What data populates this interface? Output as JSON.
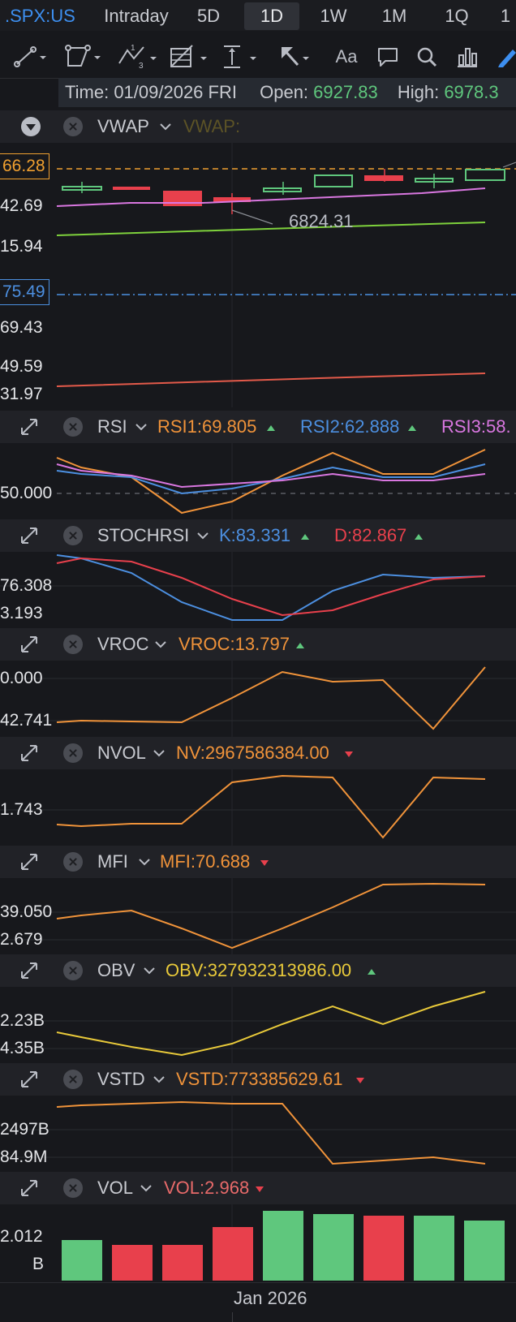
{
  "tabs": {
    "symbol": ".SPX:US",
    "items": [
      {
        "label": "Intraday",
        "active": false
      },
      {
        "label": "5D",
        "active": false
      },
      {
        "label": "1D",
        "active": true
      },
      {
        "label": "1W",
        "active": false
      },
      {
        "label": "1M",
        "active": false
      },
      {
        "label": "1Q",
        "active": false
      },
      {
        "label": "1",
        "active": false
      }
    ]
  },
  "toolbar": {
    "icons": [
      "line-tool-icon",
      "channel-tool-icon",
      "wave-tool-icon",
      "fib-tool-icon",
      "measure-tool-icon",
      "arrow-tool-icon",
      "text-tool-icon",
      "comment-tool-icon",
      "search-icon",
      "indicator-icon",
      "pen-icon"
    ],
    "text_tool_label": "Aa",
    "wave_tool_label": "13"
  },
  "info": {
    "time_label": "Time:",
    "time_value": "01/09/2026 FRI",
    "open_label": "Open:",
    "open_value": "6927.83",
    "high_label": "High:",
    "high_value": "6978.3"
  },
  "colors": {
    "up": "#5fc77d",
    "down": "#e8404c",
    "orange": "#f0933a",
    "blue": "#4c8fe0",
    "pink": "#d977e0",
    "yellow": "#e8c93a",
    "green_line": "#7ed13c",
    "salmon": "#e35a4a"
  },
  "main": {
    "indicator": "VWAP",
    "indicator_value_label": "VWAP:",
    "price_labels": [
      "66.28",
      "42.69",
      "15.94",
      "75.49",
      "69.43",
      "49.59",
      "31.97"
    ],
    "annotation": "6824.31"
  },
  "panels": {
    "rsi": {
      "name": "RSI",
      "v1": "RSI1:69.805",
      "v2": "RSI2:62.888",
      "v3": "RSI3:58.",
      "axis": "50.000"
    },
    "stochrsi": {
      "name": "STOCHRSI",
      "k": "K:83.331",
      "d": "D:82.867",
      "axis1": "76.308",
      "axis2": "3.193"
    },
    "vroc": {
      "name": "VROC",
      "v": "VROC:13.797",
      "axis1": "0.000",
      "axis2": "42.741"
    },
    "nvol": {
      "name": "NVOL",
      "v": "NV:2967586384.00",
      "axis1": "1.743"
    },
    "mfi": {
      "name": "MFI",
      "v": "MFI:70.688",
      "axis1": "39.050",
      "axis2": "2.679"
    },
    "obv": {
      "name": "OBV",
      "v": "OBV:327932313986.00",
      "axis1": "2.23B",
      "axis2": "4.35B"
    },
    "vstd": {
      "name": "VSTD",
      "v": "VSTD:773385629.61",
      "axis1": "2497B",
      "axis2": "84.9M"
    },
    "vol": {
      "name": "VOL",
      "v": "VOL:2.968",
      "axis1": "2.012",
      "axis2": "B"
    }
  },
  "x_axis_label": "Jan 2026"
}
